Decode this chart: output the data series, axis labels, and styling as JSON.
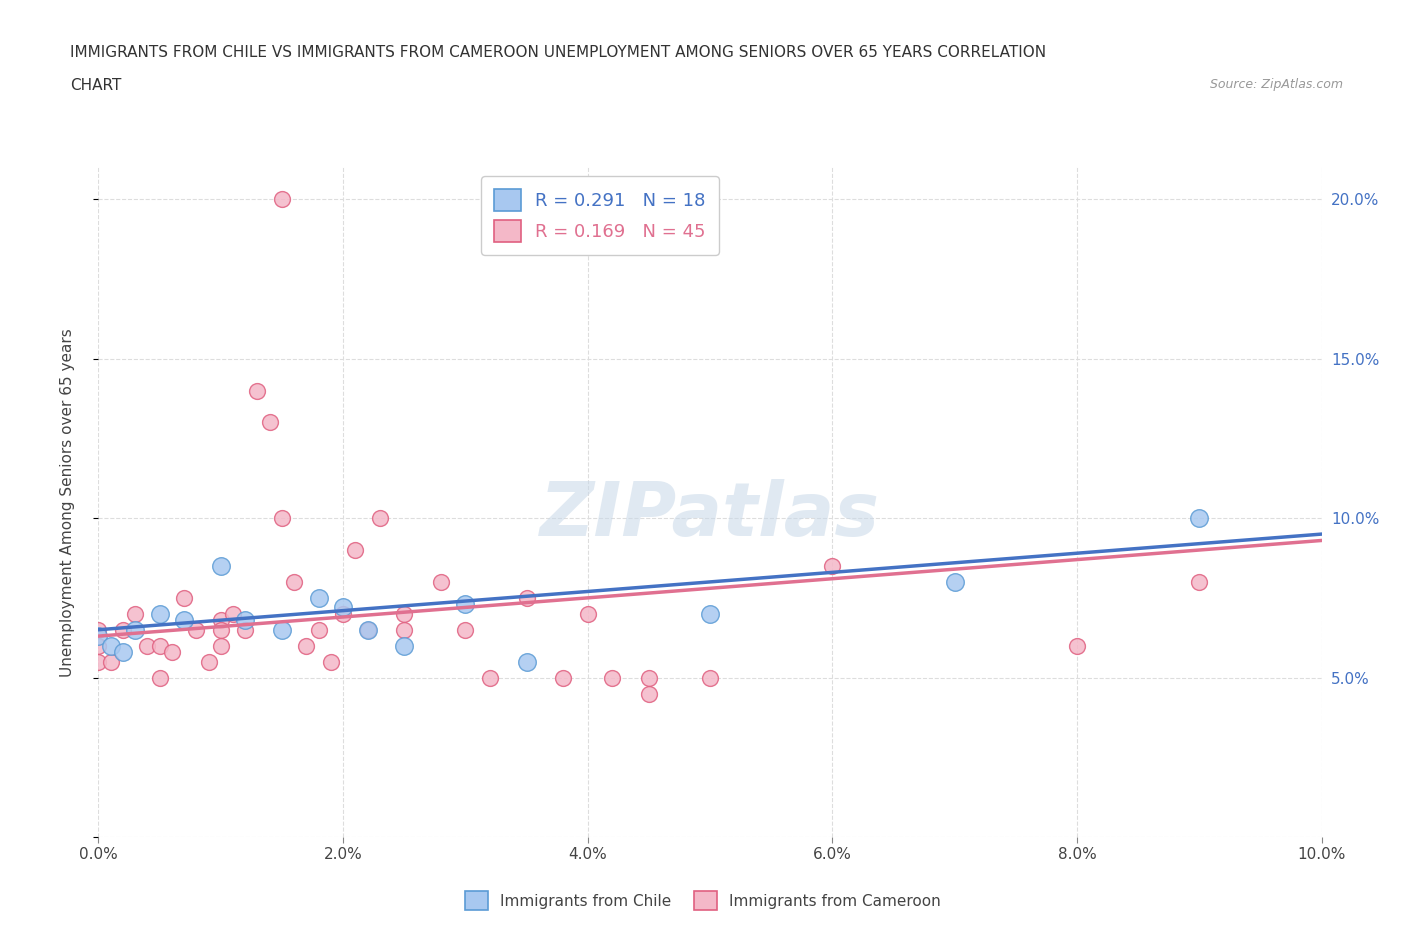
{
  "title_line1": "IMMIGRANTS FROM CHILE VS IMMIGRANTS FROM CAMEROON UNEMPLOYMENT AMONG SENIORS OVER 65 YEARS CORRELATION",
  "title_line2": "CHART",
  "source": "Source: ZipAtlas.com",
  "ylabel": "Unemployment Among Seniors over 65 years",
  "xlim": [
    0.0,
    0.1
  ],
  "ylim": [
    0.0,
    0.21
  ],
  "xticks": [
    0.0,
    0.02,
    0.04,
    0.06,
    0.08,
    0.1
  ],
  "yticks": [
    0.0,
    0.05,
    0.1,
    0.15,
    0.2
  ],
  "xticklabels": [
    "0.0%",
    "2.0%",
    "4.0%",
    "6.0%",
    "8.0%",
    "10.0%"
  ],
  "yticklabels_right": [
    "",
    "5.0%",
    "10.0%",
    "15.0%",
    "20.0%"
  ],
  "chile_color": "#a8c8f0",
  "chile_edge_color": "#5b9bd5",
  "cameroon_color": "#f4b8c8",
  "cameroon_edge_color": "#e06080",
  "chile_line_color": "#4472c4",
  "cameroon_line_color": "#e07090",
  "r_chile": 0.291,
  "n_chile": 18,
  "r_cameroon": 0.169,
  "n_cameroon": 45,
  "legend_label_chile": "Immigrants from Chile",
  "legend_label_cameroon": "Immigrants from Cameroon",
  "watermark": "ZIPatlas",
  "watermark_color": "#c8d8e8",
  "grid_color": "#dddddd",
  "background_color": "#ffffff",
  "chile_x": [
    0.0,
    0.001,
    0.002,
    0.003,
    0.005,
    0.007,
    0.01,
    0.012,
    0.015,
    0.018,
    0.02,
    0.022,
    0.025,
    0.03,
    0.035,
    0.05,
    0.07,
    0.09
  ],
  "chile_y": [
    0.063,
    0.06,
    0.058,
    0.065,
    0.07,
    0.068,
    0.085,
    0.068,
    0.065,
    0.075,
    0.072,
    0.065,
    0.06,
    0.073,
    0.055,
    0.07,
    0.08,
    0.1
  ],
  "cameroon_x": [
    0.0,
    0.0,
    0.0,
    0.001,
    0.002,
    0.003,
    0.004,
    0.005,
    0.005,
    0.006,
    0.007,
    0.008,
    0.009,
    0.01,
    0.01,
    0.01,
    0.011,
    0.012,
    0.013,
    0.014,
    0.015,
    0.015,
    0.016,
    0.017,
    0.018,
    0.019,
    0.02,
    0.021,
    0.022,
    0.023,
    0.025,
    0.025,
    0.028,
    0.03,
    0.032,
    0.035,
    0.038,
    0.04,
    0.042,
    0.045,
    0.045,
    0.05,
    0.06,
    0.08,
    0.09
  ],
  "cameroon_y": [
    0.065,
    0.06,
    0.055,
    0.055,
    0.065,
    0.07,
    0.06,
    0.06,
    0.05,
    0.058,
    0.075,
    0.065,
    0.055,
    0.068,
    0.065,
    0.06,
    0.07,
    0.065,
    0.14,
    0.13,
    0.2,
    0.1,
    0.08,
    0.06,
    0.065,
    0.055,
    0.07,
    0.09,
    0.065,
    0.1,
    0.07,
    0.065,
    0.08,
    0.065,
    0.05,
    0.075,
    0.05,
    0.07,
    0.05,
    0.05,
    0.045,
    0.05,
    0.085,
    0.06,
    0.08
  ],
  "chile_line_x": [
    0.0,
    0.1
  ],
  "chile_line_y": [
    0.065,
    0.095
  ],
  "cameroon_line_x": [
    0.0,
    0.1
  ],
  "cameroon_line_y": [
    0.063,
    0.093
  ]
}
